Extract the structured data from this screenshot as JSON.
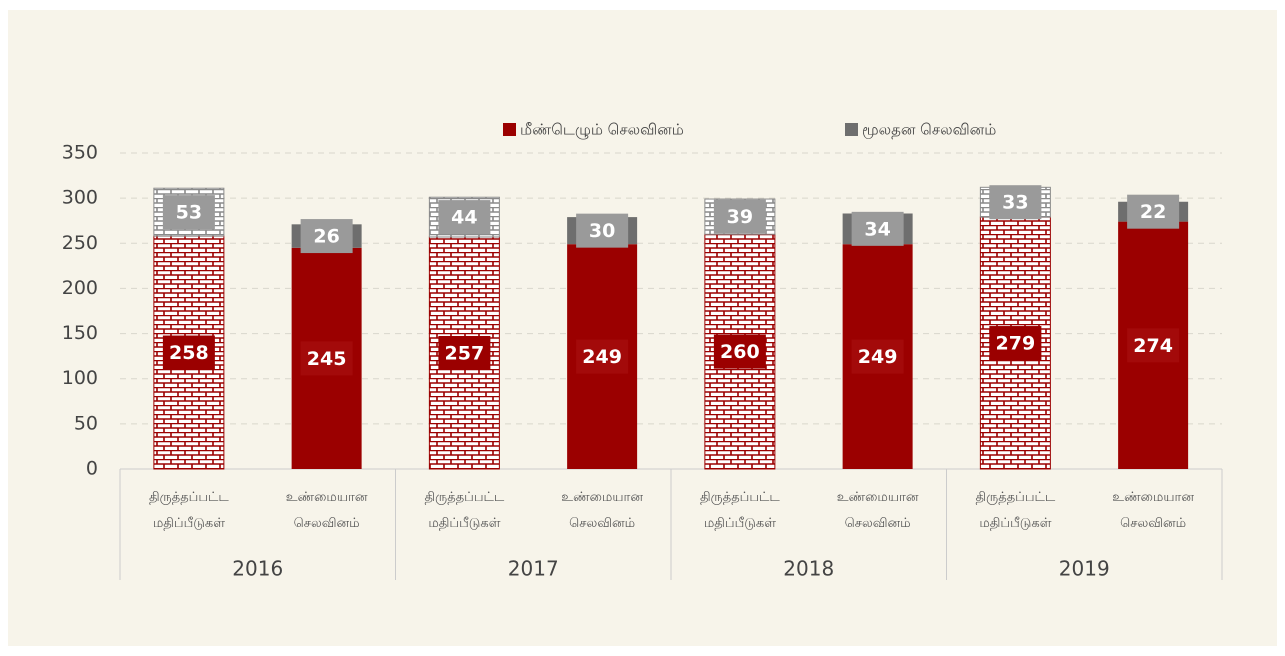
{
  "chart_data": {
    "type": "stacked_bar",
    "categories": [
      "திருத்தப்பட்ட மதிப்பீடுகள்",
      "உண்மையான செலவினம்",
      "திருத்தப்பட்ட மதிப்பீடுகள்",
      "உண்மையான செலவினம்",
      "திருத்தப்பட்ட மதிப்பீடுகள்",
      "உண்மையான செலவினம்",
      "திருத்தப்பட்ட மதிப்பீடுகள்",
      "உண்மையான செலவினம்"
    ],
    "groups": [
      "2016",
      "2017",
      "2018",
      "2019"
    ],
    "series": [
      {
        "name": "மீண்டெழும் செலவினம்",
        "color": "#9b0000",
        "values": [
          258,
          245,
          257,
          249,
          260,
          249,
          279,
          274
        ]
      },
      {
        "name": "மூலதன செலவினம்",
        "color": "#6e6e6e",
        "values": [
          53,
          26,
          44,
          30,
          39,
          34,
          33,
          22
        ]
      }
    ],
    "ylim": [
      0,
      350
    ],
    "yticks": [
      0,
      50,
      100,
      150,
      200,
      250,
      300,
      350
    ],
    "grid": true,
    "legend": "top"
  }
}
